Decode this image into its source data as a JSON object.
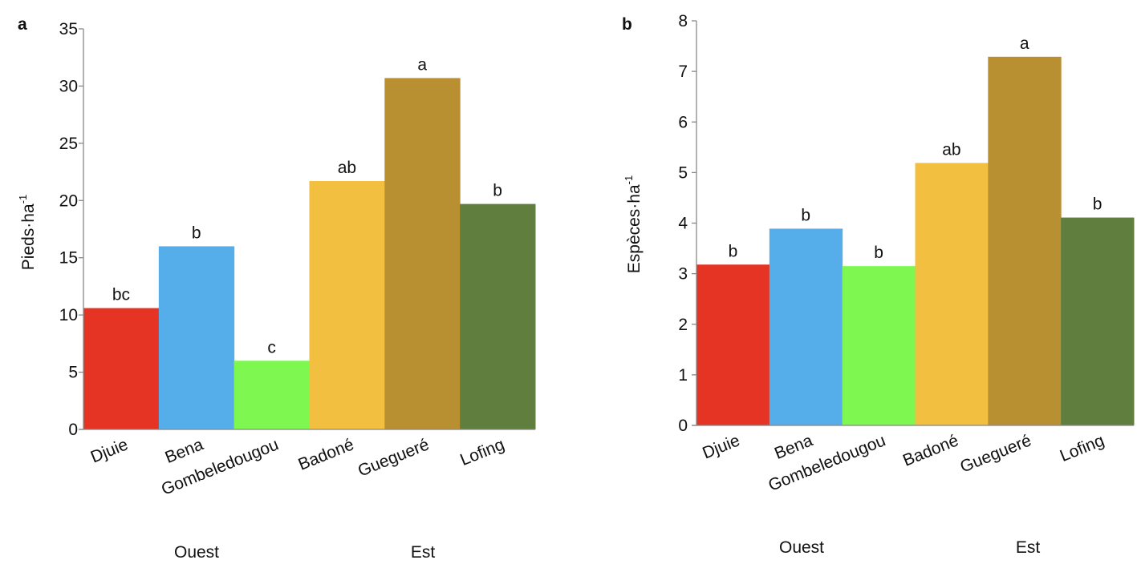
{
  "chart_data": [
    {
      "type": "bar",
      "panel": "a",
      "ylabel": "Pieds·ha",
      "ylabel_sup": "-1",
      "ylim": [
        0,
        35
      ],
      "yticks": [
        "0",
        "5",
        "10",
        "15",
        "20",
        "25",
        "30",
        "35"
      ],
      "categories": [
        "Djuie",
        "Bena",
        "Gombeledougou",
        "Badoné",
        "Guegueré",
        "Lofing"
      ],
      "values": [
        10.6,
        16.0,
        6.0,
        21.7,
        30.7,
        19.7
      ],
      "labels": [
        "bc",
        "b",
        "c",
        "ab",
        "a",
        "b"
      ],
      "groups": [
        "Ouest",
        "Est"
      ]
    },
    {
      "type": "bar",
      "panel": "b",
      "ylabel": "Espèces·ha",
      "ylabel_sup": "-1",
      "ylim": [
        0,
        8
      ],
      "yticks": [
        "0",
        "1",
        "2",
        "3",
        "4",
        "5",
        "6",
        "7",
        "8"
      ],
      "categories": [
        "Djuie",
        "Bena",
        "Gombeledougou",
        "Badoné",
        "Guegueré",
        "Lofing"
      ],
      "values": [
        3.18,
        3.89,
        3.15,
        5.19,
        7.29,
        4.11
      ],
      "labels": [
        "b",
        "b",
        "b",
        "ab",
        "a",
        "b"
      ],
      "groups": [
        "Ouest",
        "Est"
      ]
    }
  ],
  "colors": [
    "#e53424",
    "#55aee9",
    "#7ef850",
    "#f2bf41",
    "#b88f31",
    "#607f3e"
  ]
}
